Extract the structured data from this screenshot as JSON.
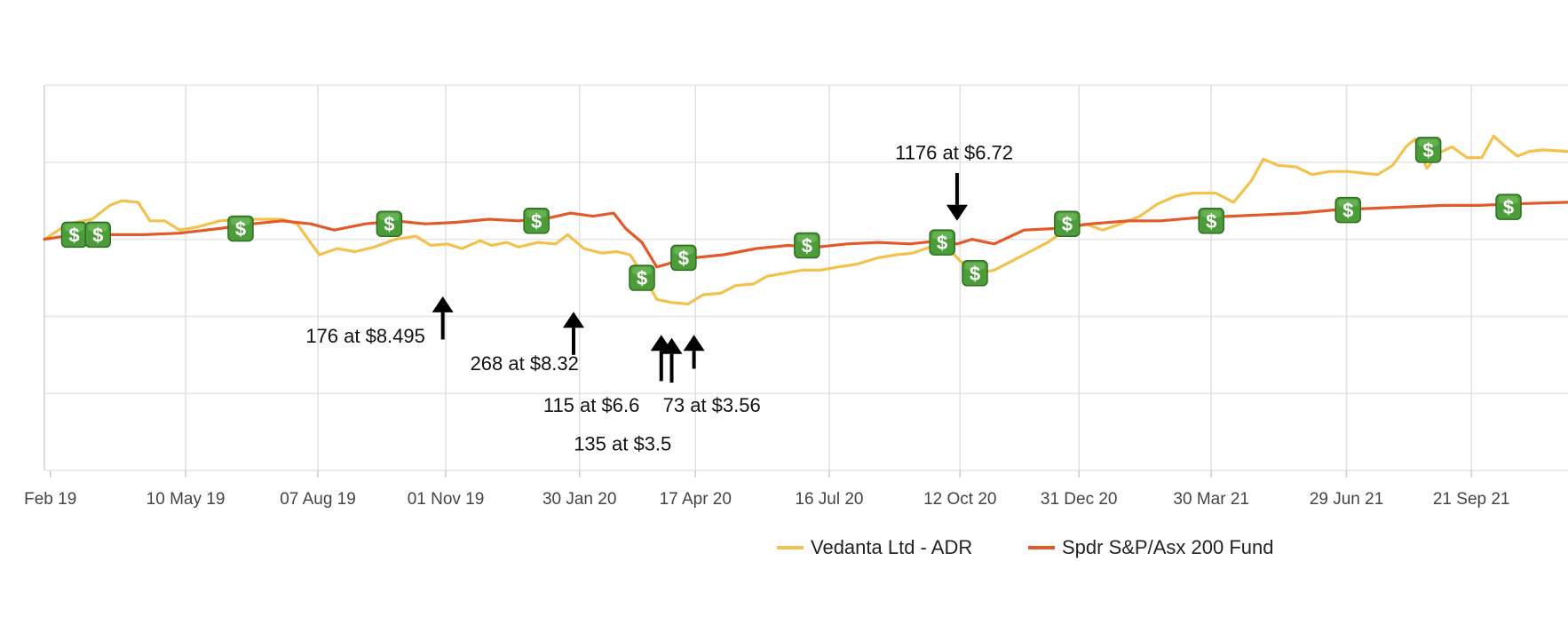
{
  "chart_data": {
    "type": "line",
    "title": "",
    "xlabel": "",
    "ylabel": "",
    "grid": true,
    "legend_position": "bottom",
    "x_type": "date",
    "xlim": [
      "2019-02-04",
      "2021-11-25"
    ],
    "ylim": [
      -0.5,
      2.0
    ],
    "x_ticks": [
      {
        "date": "2019-02-08",
        "label": "Feb 19"
      },
      {
        "date": "2019-05-10",
        "label": "10 May 19"
      },
      {
        "date": "2019-08-07",
        "label": "07 Aug 19"
      },
      {
        "date": "2019-11-01",
        "label": "01 Nov 19"
      },
      {
        "date": "2020-01-30",
        "label": "30 Jan 20"
      },
      {
        "date": "2020-04-17",
        "label": "17 Apr 20"
      },
      {
        "date": "2020-07-16",
        "label": "16 Jul 20"
      },
      {
        "date": "2020-10-12",
        "label": "12 Oct 20"
      },
      {
        "date": "2020-12-31",
        "label": "31 Dec 20"
      },
      {
        "date": "2021-03-30",
        "label": "30 Mar 21"
      },
      {
        "date": "2021-06-29",
        "label": "29 Jun 21"
      },
      {
        "date": "2021-09-21",
        "label": "21 Sep 21"
      }
    ],
    "y_gridlines": [
      -0.5,
      0.0,
      0.5,
      1.0,
      1.5,
      2.0
    ],
    "series": [
      {
        "name": "Vedanta Ltd - ADR",
        "color": "#f2c14e",
        "points": [
          [
            "2019-02-04",
            1.0
          ],
          [
            "2019-02-20",
            1.1
          ],
          [
            "2019-03-08",
            1.13
          ],
          [
            "2019-03-20",
            1.22
          ],
          [
            "2019-03-28",
            1.25
          ],
          [
            "2019-04-08",
            1.24
          ],
          [
            "2019-04-16",
            1.12
          ],
          [
            "2019-04-26",
            1.12
          ],
          [
            "2019-05-06",
            1.06
          ],
          [
            "2019-05-18",
            1.08
          ],
          [
            "2019-06-02",
            1.12
          ],
          [
            "2019-06-18",
            1.13
          ],
          [
            "2019-07-02",
            1.13
          ],
          [
            "2019-07-14",
            1.13
          ],
          [
            "2019-07-24",
            1.1
          ],
          [
            "2019-08-08",
            0.9
          ],
          [
            "2019-08-20",
            0.94
          ],
          [
            "2019-09-01",
            0.92
          ],
          [
            "2019-09-14",
            0.95
          ],
          [
            "2019-09-28",
            1.0
          ],
          [
            "2019-10-12",
            1.02
          ],
          [
            "2019-10-22",
            0.96
          ],
          [
            "2019-11-02",
            0.97
          ],
          [
            "2019-11-12",
            0.94
          ],
          [
            "2019-11-24",
            0.99
          ],
          [
            "2019-12-02",
            0.96
          ],
          [
            "2019-12-12",
            0.98
          ],
          [
            "2019-12-20",
            0.95
          ],
          [
            "2020-01-02",
            0.98
          ],
          [
            "2020-01-14",
            0.97
          ],
          [
            "2020-01-22",
            1.03
          ],
          [
            "2020-02-02",
            0.94
          ],
          [
            "2020-02-14",
            0.91
          ],
          [
            "2020-02-24",
            0.92
          ],
          [
            "2020-03-04",
            0.9
          ],
          [
            "2020-03-14",
            0.75
          ],
          [
            "2020-03-22",
            0.61
          ],
          [
            "2020-04-01",
            0.59
          ],
          [
            "2020-04-12",
            0.58
          ],
          [
            "2020-04-22",
            0.64
          ],
          [
            "2020-05-04",
            0.65
          ],
          [
            "2020-05-14",
            0.7
          ],
          [
            "2020-05-26",
            0.71
          ],
          [
            "2020-06-04",
            0.76
          ],
          [
            "2020-06-16",
            0.78
          ],
          [
            "2020-06-28",
            0.8
          ],
          [
            "2020-07-10",
            0.8
          ],
          [
            "2020-07-22",
            0.82
          ],
          [
            "2020-08-04",
            0.84
          ],
          [
            "2020-08-18",
            0.88
          ],
          [
            "2020-08-30",
            0.9
          ],
          [
            "2020-09-10",
            0.91
          ],
          [
            "2020-09-22",
            0.95
          ],
          [
            "2020-10-04",
            0.94
          ],
          [
            "2020-10-12",
            0.86
          ],
          [
            "2020-10-24",
            0.78
          ],
          [
            "2020-11-04",
            0.8
          ],
          [
            "2020-11-16",
            0.86
          ],
          [
            "2020-11-28",
            0.92
          ],
          [
            "2020-12-10",
            0.98
          ],
          [
            "2020-12-22",
            1.06
          ],
          [
            "2021-01-04",
            1.1
          ],
          [
            "2021-01-16",
            1.06
          ],
          [
            "2021-01-28",
            1.1
          ],
          [
            "2021-02-10",
            1.15
          ],
          [
            "2021-02-22",
            1.23
          ],
          [
            "2021-03-06",
            1.28
          ],
          [
            "2021-03-18",
            1.3
          ],
          [
            "2021-04-02",
            1.3
          ],
          [
            "2021-04-14",
            1.24
          ],
          [
            "2021-04-26",
            1.38
          ],
          [
            "2021-05-04",
            1.52
          ],
          [
            "2021-05-14",
            1.48
          ],
          [
            "2021-05-26",
            1.47
          ],
          [
            "2021-06-06",
            1.42
          ],
          [
            "2021-06-18",
            1.44
          ],
          [
            "2021-06-30",
            1.44
          ],
          [
            "2021-07-10",
            1.43
          ],
          [
            "2021-07-20",
            1.42
          ],
          [
            "2021-07-30",
            1.48
          ],
          [
            "2021-08-08",
            1.6
          ],
          [
            "2021-08-14",
            1.65
          ],
          [
            "2021-08-22",
            1.46
          ],
          [
            "2021-08-30",
            1.56
          ],
          [
            "2021-09-08",
            1.6
          ],
          [
            "2021-09-18",
            1.53
          ],
          [
            "2021-09-28",
            1.53
          ],
          [
            "2021-10-06",
            1.67
          ],
          [
            "2021-10-14",
            1.6
          ],
          [
            "2021-10-22",
            1.54
          ],
          [
            "2021-10-30",
            1.57
          ],
          [
            "2021-11-08",
            1.58
          ],
          [
            "2021-11-25",
            1.57
          ]
        ]
      },
      {
        "name": "Spdr S&P/Asx 200 Fund",
        "color": "#e2592a",
        "points": [
          [
            "2019-02-04",
            1.0
          ],
          [
            "2019-02-24",
            1.03
          ],
          [
            "2019-03-20",
            1.03
          ],
          [
            "2019-04-12",
            1.03
          ],
          [
            "2019-05-06",
            1.04
          ],
          [
            "2019-06-02",
            1.07
          ],
          [
            "2019-06-24",
            1.1
          ],
          [
            "2019-07-14",
            1.12
          ],
          [
            "2019-08-02",
            1.1
          ],
          [
            "2019-08-18",
            1.06
          ],
          [
            "2019-09-08",
            1.1
          ],
          [
            "2019-09-28",
            1.12
          ],
          [
            "2019-10-18",
            1.1
          ],
          [
            "2019-11-08",
            1.11
          ],
          [
            "2019-11-30",
            1.13
          ],
          [
            "2019-12-20",
            1.12
          ],
          [
            "2020-01-10",
            1.14
          ],
          [
            "2020-01-24",
            1.17
          ],
          [
            "2020-02-08",
            1.15
          ],
          [
            "2020-02-22",
            1.17
          ],
          [
            "2020-03-01",
            1.07
          ],
          [
            "2020-03-12",
            0.98
          ],
          [
            "2020-03-22",
            0.82
          ],
          [
            "2020-04-02",
            0.85
          ],
          [
            "2020-04-16",
            0.88
          ],
          [
            "2020-05-06",
            0.9
          ],
          [
            "2020-05-28",
            0.94
          ],
          [
            "2020-06-18",
            0.96
          ],
          [
            "2020-07-08",
            0.95
          ],
          [
            "2020-07-28",
            0.97
          ],
          [
            "2020-08-18",
            0.98
          ],
          [
            "2020-09-08",
            0.97
          ],
          [
            "2020-09-28",
            0.99
          ],
          [
            "2020-10-10",
            0.97
          ],
          [
            "2020-10-20",
            1.0
          ],
          [
            "2020-11-04",
            0.97
          ],
          [
            "2020-11-24",
            1.06
          ],
          [
            "2020-12-16",
            1.07
          ],
          [
            "2021-01-08",
            1.1
          ],
          [
            "2021-02-02",
            1.12
          ],
          [
            "2021-02-24",
            1.12
          ],
          [
            "2021-03-20",
            1.14
          ],
          [
            "2021-04-12",
            1.15
          ],
          [
            "2021-05-06",
            1.16
          ],
          [
            "2021-05-28",
            1.17
          ],
          [
            "2021-06-20",
            1.19
          ],
          [
            "2021-07-14",
            1.2
          ],
          [
            "2021-08-08",
            1.21
          ],
          [
            "2021-09-02",
            1.22
          ],
          [
            "2021-09-26",
            1.22
          ],
          [
            "2021-10-20",
            1.23
          ],
          [
            "2021-11-25",
            1.24
          ]
        ]
      }
    ],
    "purchase_markers": [
      {
        "date": "2019-02-24",
        "value": 1.03,
        "symbol": "$"
      },
      {
        "date": "2019-03-12",
        "value": 1.03,
        "symbol": "$"
      },
      {
        "date": "2019-06-16",
        "value": 1.07,
        "symbol": "$"
      },
      {
        "date": "2019-09-24",
        "value": 1.1,
        "symbol": "$"
      },
      {
        "date": "2020-01-01",
        "value": 1.12,
        "symbol": "$"
      },
      {
        "date": "2020-03-12",
        "value": 0.75,
        "symbol": "$"
      },
      {
        "date": "2020-04-09",
        "value": 0.88,
        "symbol": "$"
      },
      {
        "date": "2020-07-01",
        "value": 0.96,
        "symbol": "$"
      },
      {
        "date": "2020-09-30",
        "value": 0.98,
        "symbol": "$"
      },
      {
        "date": "2020-10-22",
        "value": 0.78,
        "symbol": "$"
      },
      {
        "date": "2020-12-23",
        "value": 1.1,
        "symbol": "$"
      },
      {
        "date": "2021-03-30",
        "value": 1.12,
        "symbol": "$"
      },
      {
        "date": "2021-06-30",
        "value": 1.19,
        "symbol": "$"
      },
      {
        "date": "2021-08-23",
        "value": 1.58,
        "symbol": "$"
      },
      {
        "date": "2021-10-16",
        "value": 1.21,
        "symbol": "$"
      }
    ],
    "annotations": [
      {
        "text": "176 at $8.495",
        "arrow_date": "2019-10-30",
        "arrow_from": 0.35,
        "arrow_to": 0.63,
        "label_date": "2019-09-08",
        "label_value": 0.33
      },
      {
        "text": "268 at $8.32",
        "arrow_date": "2020-01-26",
        "arrow_from": 0.25,
        "arrow_to": 0.53,
        "label_date": "2019-12-24",
        "label_value": 0.15
      },
      {
        "text": "115 at $6.6",
        "arrow_date": "2020-03-25",
        "arrow_from": 0.08,
        "arrow_to": 0.38,
        "label_date": "2020-02-07",
        "label_value": -0.12
      },
      {
        "text": "135 at $3.5",
        "arrow_date": "2020-04-01",
        "arrow_from": 0.07,
        "arrow_to": 0.36,
        "label_date": "2020-02-28",
        "label_value": -0.37
      },
      {
        "text": "73 at $3.56",
        "arrow_date": "2020-04-16",
        "arrow_from": 0.16,
        "arrow_to": 0.38,
        "label_date": "2020-04-28",
        "label_value": -0.12
      },
      {
        "text": "1176 at $6.72",
        "arrow_date": "2020-10-10",
        "arrow_from": 1.43,
        "arrow_to": 1.12,
        "label_date": "2020-10-08",
        "label_value": 1.52
      }
    ],
    "legend": [
      {
        "name": "Vedanta Ltd - ADR",
        "color": "#f2c14e"
      },
      {
        "name": "Spdr S&P/Asx 200 Fund",
        "color": "#e2592a"
      }
    ]
  }
}
